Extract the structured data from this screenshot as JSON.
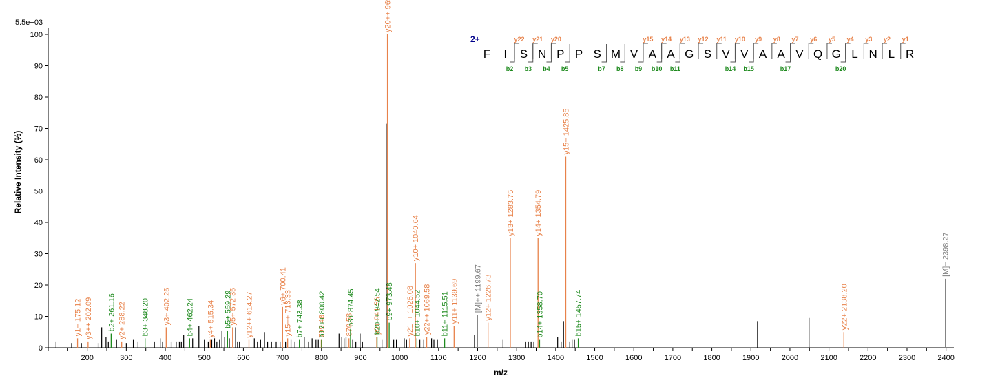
{
  "colors": {
    "y_ion": "#E8824A",
    "b_ion": "#1E8A1E",
    "precursor": "#808080",
    "peak": "#000000",
    "charge": "#00008B"
  },
  "chart_data": {
    "type": "bar",
    "intensity_max_label": "5.5e+03",
    "ylabel": "Relative   Intensity (%)",
    "xlabel": "m/z",
    "xlim": [
      100,
      2420
    ],
    "ylim": [
      0,
      100
    ],
    "x_ticks": [
      200,
      300,
      400,
      500,
      600,
      700,
      800,
      900,
      1000,
      1100,
      1200,
      1300,
      1400,
      1500,
      1600,
      1700,
      1800,
      1900,
      2000,
      2100,
      2200,
      2300,
      2400
    ],
    "y_ticks": [
      0,
      10,
      20,
      30,
      40,
      50,
      60,
      70,
      80,
      90,
      100
    ],
    "annotated_peaks": [
      {
        "mz": 175.12,
        "rel": 3.0,
        "label": "y1+ 175.12",
        "ion": "y"
      },
      {
        "mz": 202.09,
        "rel": 2.0,
        "label": "y3++ 202.09",
        "ion": "y"
      },
      {
        "mz": 261.16,
        "rel": 4.5,
        "label": "b2+ 261.16",
        "ion": "b"
      },
      {
        "mz": 288.22,
        "rel": 2.0,
        "label": "y2+ 288.22",
        "ion": "y"
      },
      {
        "mz": 348.2,
        "rel": 3.0,
        "label": "b3+ 348.20",
        "ion": "b"
      },
      {
        "mz": 402.25,
        "rel": 6.5,
        "label": "y3+ 402.25",
        "ion": "y"
      },
      {
        "mz": 462.24,
        "rel": 3.0,
        "label": "b4+ 462.24",
        "ion": "b"
      },
      {
        "mz": 515.34,
        "rel": 2.5,
        "label": "y4+ 515.34",
        "ion": "y"
      },
      {
        "mz": 559.29,
        "rel": 5.5,
        "label": "b5+ 559.29",
        "ion": "b"
      },
      {
        "mz": 572.35,
        "rel": 6.5,
        "label": "y5+ 572.35",
        "ion": "y"
      },
      {
        "mz": 614.27,
        "rel": 2.5,
        "label": "y12++ 614.27",
        "ion": "y"
      },
      {
        "mz": 700.41,
        "rel": 13.0,
        "label": "y6+ 700.41",
        "ion": "y"
      },
      {
        "mz": 713.33,
        "rel": 3.0,
        "label": "y15++ 713.33",
        "ion": "y"
      },
      {
        "mz": 743.38,
        "rel": 2.5,
        "label": "b7+ 743.38",
        "ion": "b"
      },
      {
        "mz": 799.48,
        "rel": 2.5,
        "label": "799.48",
        "ion": "y"
      },
      {
        "mz": 800.42,
        "rel": 2.5,
        "label": "b17++ 800.42",
        "ion": "b"
      },
      {
        "mz": 870.53,
        "rel": 3.0,
        "label": "870.53",
        "ion": "y"
      },
      {
        "mz": 874.45,
        "rel": 6.0,
        "label": "b8+ 874.45",
        "ion": "b"
      },
      {
        "mz": 941.56,
        "rel": 3.5,
        "label": "y9+ 941.56",
        "ion": "y"
      },
      {
        "mz": 942.54,
        "rel": 3.5,
        "label": "b20++ 942.54",
        "ion": "b"
      },
      {
        "mz": 969.04,
        "rel": 100.0,
        "label": "y20++ 969.04",
        "ion": "y"
      },
      {
        "mz": 973.48,
        "rel": 8.0,
        "label": "b9+ 973.48",
        "ion": "b"
      },
      {
        "mz": 1026.08,
        "rel": 3.0,
        "label": "y21++ 1026.08",
        "ion": "y"
      },
      {
        "mz": 1040.64,
        "rel": 27.0,
        "label": "y10+ 1040.64",
        "ion": "y"
      },
      {
        "mz": 1044.52,
        "rel": 3.0,
        "label": "b10+ 1044.52",
        "ion": "b"
      },
      {
        "mz": 1069.58,
        "rel": 3.5,
        "label": "y22++ 1069.58",
        "ion": "y"
      },
      {
        "mz": 1115.51,
        "rel": 3.0,
        "label": "b11+ 1115.51",
        "ion": "b"
      },
      {
        "mz": 1139.69,
        "rel": 7.0,
        "label": "y11+ 1139.69",
        "ion": "y"
      },
      {
        "mz": 1199.67,
        "rel": 10.5,
        "label": "[M]++ 1199.67",
        "ion": "p"
      },
      {
        "mz": 1226.73,
        "rel": 8.0,
        "label": "y12+ 1226.73",
        "ion": "y"
      },
      {
        "mz": 1283.75,
        "rel": 35.0,
        "label": "y13+ 1283.75",
        "ion": "y"
      },
      {
        "mz": 1354.79,
        "rel": 35.0,
        "label": "y14+ 1354.79",
        "ion": "y"
      },
      {
        "mz": 1358.7,
        "rel": 2.5,
        "label": "b14+ 1358.70",
        "ion": "b"
      },
      {
        "mz": 1425.85,
        "rel": 61.0,
        "label": "y15+ 1425.85",
        "ion": "y"
      },
      {
        "mz": 1457.74,
        "rel": 3.0,
        "label": "b15+ 1457.74",
        "ion": "b"
      },
      {
        "mz": 2138.2,
        "rel": 5.0,
        "label": "y22+ 2138.20",
        "ion": "y"
      },
      {
        "mz": 2398.27,
        "rel": 22.0,
        "label": "[M]+ 2398.27",
        "ion": "p"
      }
    ],
    "unannotated_peaks": [
      {
        "mz": 120,
        "rel": 2
      },
      {
        "mz": 160,
        "rel": 1.5
      },
      {
        "mz": 185,
        "rel": 1.5
      },
      {
        "mz": 228,
        "rel": 1.5
      },
      {
        "mz": 237,
        "rel": 6.5
      },
      {
        "mz": 248,
        "rel": 3.5
      },
      {
        "mz": 254,
        "rel": 2
      },
      {
        "mz": 275,
        "rel": 2.5
      },
      {
        "mz": 300,
        "rel": 1.5
      },
      {
        "mz": 318,
        "rel": 2.5
      },
      {
        "mz": 330,
        "rel": 2
      },
      {
        "mz": 372,
        "rel": 2
      },
      {
        "mz": 387,
        "rel": 3
      },
      {
        "mz": 393,
        "rel": 2
      },
      {
        "mz": 415,
        "rel": 2
      },
      {
        "mz": 428,
        "rel": 2
      },
      {
        "mz": 436,
        "rel": 2
      },
      {
        "mz": 441,
        "rel": 2
      },
      {
        "mz": 447,
        "rel": 4
      },
      {
        "mz": 470,
        "rel": 3
      },
      {
        "mz": 486,
        "rel": 7
      },
      {
        "mz": 500,
        "rel": 2.5
      },
      {
        "mz": 510,
        "rel": 2
      },
      {
        "mz": 519,
        "rel": 2.5
      },
      {
        "mz": 526,
        "rel": 3
      },
      {
        "mz": 532,
        "rel": 2
      },
      {
        "mz": 539,
        "rel": 2.5
      },
      {
        "mz": 545,
        "rel": 5.5
      },
      {
        "mz": 552,
        "rel": 3.5
      },
      {
        "mz": 564,
        "rel": 3
      },
      {
        "mz": 580,
        "rel": 6.5
      },
      {
        "mz": 585,
        "rel": 2
      },
      {
        "mz": 590,
        "rel": 2
      },
      {
        "mz": 628,
        "rel": 3
      },
      {
        "mz": 636,
        "rel": 2
      },
      {
        "mz": 644,
        "rel": 2.5
      },
      {
        "mz": 654,
        "rel": 5
      },
      {
        "mz": 662,
        "rel": 2
      },
      {
        "mz": 672,
        "rel": 2
      },
      {
        "mz": 684,
        "rel": 2
      },
      {
        "mz": 694,
        "rel": 2
      },
      {
        "mz": 708,
        "rel": 2
      },
      {
        "mz": 722,
        "rel": 2.5
      },
      {
        "mz": 732,
        "rel": 2
      },
      {
        "mz": 756,
        "rel": 3.5
      },
      {
        "mz": 767,
        "rel": 2
      },
      {
        "mz": 776,
        "rel": 3
      },
      {
        "mz": 786,
        "rel": 2.5
      },
      {
        "mz": 792,
        "rel": 2.5
      },
      {
        "mz": 845,
        "rel": 4.5
      },
      {
        "mz": 852,
        "rel": 3.5
      },
      {
        "mz": 858,
        "rel": 3
      },
      {
        "mz": 863,
        "rel": 3.5
      },
      {
        "mz": 880,
        "rel": 2.5
      },
      {
        "mz": 888,
        "rel": 2
      },
      {
        "mz": 899,
        "rel": 4.5
      },
      {
        "mz": 905,
        "rel": 2
      },
      {
        "mz": 955,
        "rel": 2.5
      },
      {
        "mz": 966,
        "rel": 71.5
      },
      {
        "mz": 985,
        "rel": 2.5
      },
      {
        "mz": 992,
        "rel": 2.5
      },
      {
        "mz": 1012,
        "rel": 3
      },
      {
        "mz": 1018,
        "rel": 2.5
      },
      {
        "mz": 1052,
        "rel": 2.5
      },
      {
        "mz": 1062,
        "rel": 2.5
      },
      {
        "mz": 1082,
        "rel": 3
      },
      {
        "mz": 1088,
        "rel": 2.5
      },
      {
        "mz": 1097,
        "rel": 2.5
      },
      {
        "mz": 1192,
        "rel": 4
      },
      {
        "mz": 1265,
        "rel": 2.5
      },
      {
        "mz": 1323,
        "rel": 2
      },
      {
        "mz": 1330,
        "rel": 2
      },
      {
        "mz": 1337,
        "rel": 2
      },
      {
        "mz": 1344,
        "rel": 2
      },
      {
        "mz": 1405,
        "rel": 3.5
      },
      {
        "mz": 1414,
        "rel": 2
      },
      {
        "mz": 1420,
        "rel": 8.5
      },
      {
        "mz": 1436,
        "rel": 2
      },
      {
        "mz": 1442,
        "rel": 2.5
      },
      {
        "mz": 1448,
        "rel": 2.5
      },
      {
        "mz": 1917,
        "rel": 8.5
      },
      {
        "mz": 2049,
        "rel": 9.5
      }
    ]
  },
  "sequence": {
    "charge_label": "2+",
    "residues": [
      "F",
      "I",
      "S",
      "N",
      "P",
      "P",
      "S",
      "M",
      "V",
      "A",
      "A",
      "G",
      "S",
      "V",
      "V",
      "A",
      "A",
      "V",
      "Q",
      "G",
      "L",
      "N",
      "L",
      "R"
    ],
    "y_ions": [
      {
        "after": 2,
        "label": "y22"
      },
      {
        "after": 3,
        "label": "y21"
      },
      {
        "after": 4,
        "label": "y20"
      },
      {
        "after": 9,
        "label": "y15"
      },
      {
        "after": 10,
        "label": "y14"
      },
      {
        "after": 11,
        "label": "y13"
      },
      {
        "after": 12,
        "label": "y12"
      },
      {
        "after": 13,
        "label": "y11"
      },
      {
        "after": 14,
        "label": "y10"
      },
      {
        "after": 15,
        "label": "y9"
      },
      {
        "after": 16,
        "label": "y8"
      },
      {
        "after": 17,
        "label": "y7"
      },
      {
        "after": 18,
        "label": "y6"
      },
      {
        "after": 19,
        "label": "y5"
      },
      {
        "after": 20,
        "label": "y4"
      },
      {
        "after": 21,
        "label": "y3"
      },
      {
        "after": 22,
        "label": "y2"
      },
      {
        "after": 23,
        "label": "y1"
      }
    ],
    "b_ions": [
      {
        "after": 2,
        "label": "b2"
      },
      {
        "after": 3,
        "label": "b3"
      },
      {
        "after": 4,
        "label": "b4"
      },
      {
        "after": 5,
        "label": "b5"
      },
      {
        "after": 7,
        "label": "b7"
      },
      {
        "after": 8,
        "label": "b8"
      },
      {
        "after": 9,
        "label": "b9"
      },
      {
        "after": 10,
        "label": "b10"
      },
      {
        "after": 11,
        "label": "b11"
      },
      {
        "after": 14,
        "label": "b14"
      },
      {
        "after": 15,
        "label": "b15"
      },
      {
        "after": 17,
        "label": "b17"
      },
      {
        "after": 20,
        "label": "b20"
      }
    ]
  }
}
